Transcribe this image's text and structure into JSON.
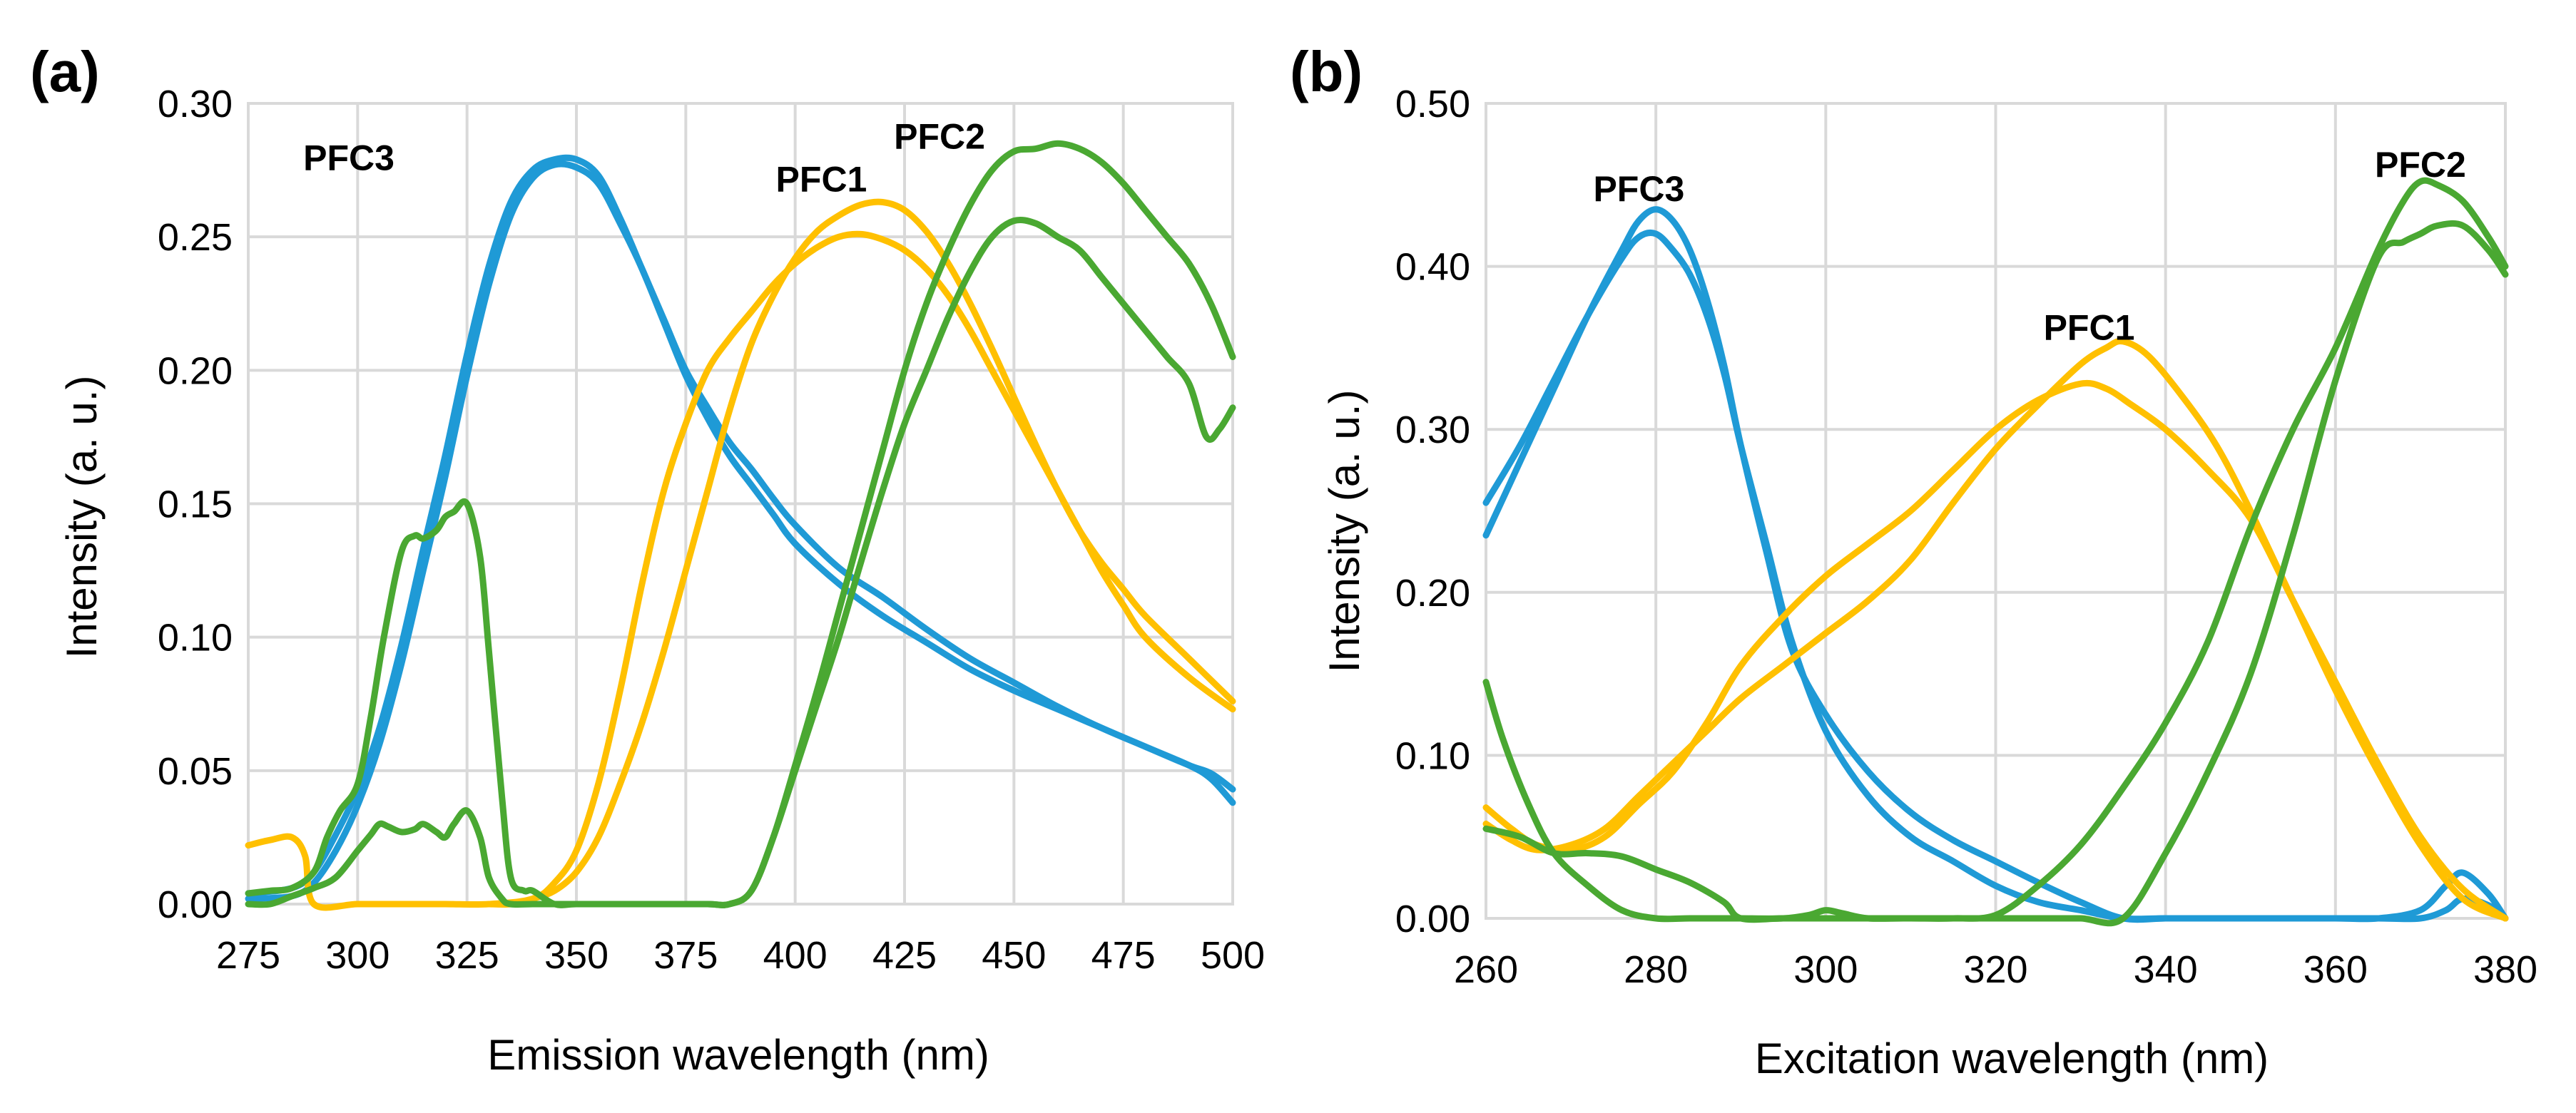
{
  "chart_data": [
    {
      "type": "line",
      "panel_label": "(a)",
      "xlabel": "Emission wavelength (nm)",
      "ylabel": "Intensity (a. u.)",
      "xlim": [
        275,
        500
      ],
      "ylim": [
        0,
        0.3
      ],
      "xticks": [
        "275",
        "300",
        "325",
        "350",
        "375",
        "400",
        "425",
        "450",
        "475",
        "500"
      ],
      "yticks": [
        "0.00",
        "0.05",
        "0.10",
        "0.15",
        "0.20",
        "0.25",
        "0.30"
      ],
      "grid": true,
      "labels": [
        {
          "text": "PFC3",
          "x": 298,
          "y": 0.275
        },
        {
          "text": "PFC1",
          "x": 406,
          "y": 0.267
        },
        {
          "text": "PFC2",
          "x": 433,
          "y": 0.283
        }
      ],
      "series": [
        {
          "name": "PFC3",
          "color": "#1f9ad6",
          "x": [
            275,
            285,
            290,
            295,
            300,
            305,
            310,
            315,
            320,
            325,
            330,
            335,
            340,
            345,
            350,
            355,
            360,
            365,
            370,
            375,
            380,
            385,
            390,
            395,
            400,
            410,
            420,
            430,
            440,
            450,
            460,
            470,
            480,
            490,
            495,
            500
          ],
          "values": [
            0.002,
            0.003,
            0.008,
            0.02,
            0.037,
            0.06,
            0.09,
            0.125,
            0.16,
            0.198,
            0.232,
            0.258,
            0.272,
            0.277,
            0.276,
            0.27,
            0.255,
            0.238,
            0.218,
            0.198,
            0.182,
            0.168,
            0.157,
            0.146,
            0.135,
            0.12,
            0.108,
            0.098,
            0.088,
            0.08,
            0.073,
            0.066,
            0.059,
            0.052,
            0.049,
            0.043
          ]
        },
        {
          "name": "PFC3",
          "color": "#1f9ad6",
          "x": [
            275,
            285,
            290,
            295,
            300,
            305,
            310,
            315,
            320,
            325,
            330,
            335,
            340,
            345,
            350,
            355,
            360,
            365,
            370,
            375,
            380,
            385,
            390,
            395,
            400,
            410,
            420,
            430,
            440,
            450,
            460,
            470,
            480,
            490,
            495,
            500
          ],
          "values": [
            0.004,
            0.006,
            0.012,
            0.026,
            0.043,
            0.066,
            0.097,
            0.133,
            0.168,
            0.206,
            0.239,
            0.263,
            0.275,
            0.279,
            0.279,
            0.273,
            0.257,
            0.238,
            0.219,
            0.2,
            0.186,
            0.173,
            0.163,
            0.152,
            0.142,
            0.126,
            0.115,
            0.103,
            0.092,
            0.083,
            0.074,
            0.066,
            0.059,
            0.052,
            0.047,
            0.038
          ]
        },
        {
          "name": "PFC1",
          "color": "#ffc000",
          "x": [
            275,
            280,
            285,
            288,
            290,
            300,
            310,
            320,
            330,
            340,
            345,
            350,
            355,
            360,
            365,
            370,
            375,
            380,
            385,
            390,
            395,
            400,
            405,
            410,
            415,
            420,
            425,
            430,
            435,
            440,
            445,
            450,
            455,
            460,
            465,
            470,
            475,
            480,
            490,
            500
          ],
          "values": [
            0.022,
            0.024,
            0.025,
            0.018,
            0.0,
            0.0,
            0.0,
            0.0,
            0.0,
            0.002,
            0.008,
            0.02,
            0.045,
            0.08,
            0.12,
            0.155,
            0.18,
            0.2,
            0.212,
            0.222,
            0.232,
            0.24,
            0.246,
            0.25,
            0.251,
            0.249,
            0.245,
            0.238,
            0.228,
            0.215,
            0.2,
            0.185,
            0.17,
            0.155,
            0.14,
            0.125,
            0.112,
            0.1,
            0.085,
            0.073
          ]
        },
        {
          "name": "PFC1",
          "color": "#ffc000",
          "x": [
            330,
            335,
            340,
            345,
            350,
            355,
            360,
            365,
            370,
            375,
            380,
            385,
            390,
            395,
            400,
            405,
            410,
            415,
            420,
            425,
            430,
            435,
            440,
            445,
            450,
            455,
            460,
            465,
            470,
            475,
            480,
            490,
            500
          ],
          "values": [
            0.0,
            0.0,
            0.002,
            0.005,
            0.012,
            0.025,
            0.045,
            0.068,
            0.095,
            0.125,
            0.155,
            0.185,
            0.21,
            0.228,
            0.242,
            0.252,
            0.258,
            0.262,
            0.263,
            0.26,
            0.252,
            0.24,
            0.225,
            0.208,
            0.19,
            0.172,
            0.155,
            0.14,
            0.128,
            0.118,
            0.108,
            0.092,
            0.076
          ]
        },
        {
          "name": "PFC2",
          "color": "#4aa832",
          "x": [
            275,
            280,
            285,
            290,
            293,
            296,
            300,
            303,
            306,
            310,
            313,
            315,
            318,
            320,
            322,
            325,
            328,
            330,
            333,
            335,
            338,
            340,
            345,
            350,
            360,
            370,
            380,
            385,
            390,
            395,
            400,
            405,
            410,
            415,
            420,
            425,
            430,
            435,
            440,
            445,
            450,
            455,
            460,
            465,
            470,
            475,
            480,
            485,
            490,
            494,
            497,
            500
          ],
          "values": [
            0.004,
            0.005,
            0.006,
            0.012,
            0.025,
            0.035,
            0.045,
            0.07,
            0.1,
            0.132,
            0.138,
            0.137,
            0.14,
            0.145,
            0.147,
            0.15,
            0.13,
            0.095,
            0.04,
            0.01,
            0.005,
            0.005,
            0.0,
            0.0,
            0.0,
            0.0,
            0.0,
            0.0,
            0.005,
            0.025,
            0.05,
            0.075,
            0.1,
            0.128,
            0.155,
            0.18,
            0.2,
            0.22,
            0.237,
            0.25,
            0.256,
            0.255,
            0.25,
            0.245,
            0.235,
            0.225,
            0.215,
            0.205,
            0.195,
            0.175,
            0.178,
            0.186
          ]
        },
        {
          "name": "PFC2",
          "color": "#4aa832",
          "x": [
            275,
            280,
            285,
            290,
            295,
            300,
            303,
            305,
            307,
            310,
            313,
            315,
            318,
            320,
            322,
            325,
            328,
            330,
            333,
            335,
            340,
            345,
            350,
            360,
            370,
            380,
            385,
            390,
            395,
            400,
            405,
            410,
            415,
            420,
            425,
            430,
            435,
            440,
            445,
            450,
            455,
            460,
            465,
            470,
            475,
            480,
            485,
            490,
            495,
            500
          ],
          "values": [
            0.0,
            0.0,
            0.003,
            0.006,
            0.01,
            0.02,
            0.026,
            0.03,
            0.029,
            0.027,
            0.028,
            0.03,
            0.027,
            0.025,
            0.03,
            0.035,
            0.025,
            0.01,
            0.002,
            0.0,
            0.0,
            0.0,
            0.0,
            0.0,
            0.0,
            0.0,
            0.0,
            0.005,
            0.025,
            0.052,
            0.08,
            0.11,
            0.14,
            0.17,
            0.2,
            0.225,
            0.245,
            0.262,
            0.275,
            0.282,
            0.283,
            0.285,
            0.283,
            0.278,
            0.27,
            0.26,
            0.25,
            0.24,
            0.225,
            0.205
          ]
        }
      ]
    },
    {
      "type": "line",
      "panel_label": "(b)",
      "xlabel": "Excitation wavelength (nm)",
      "ylabel": "Intensity (a. u.)",
      "xlim": [
        260,
        380
      ],
      "ylim": [
        0,
        0.5
      ],
      "xticks": [
        "260",
        "280",
        "300",
        "320",
        "340",
        "360",
        "380"
      ],
      "yticks": [
        "0.00",
        "0.10",
        "0.20",
        "0.30",
        "0.40",
        "0.50"
      ],
      "grid": true,
      "labels": [
        {
          "text": "PFC3",
          "x": 278,
          "y": 0.44
        },
        {
          "text": "PFC1",
          "x": 331,
          "y": 0.355
        },
        {
          "text": "PFC2",
          "x": 370,
          "y": 0.455
        }
      ],
      "series": [
        {
          "name": "PFC3",
          "color": "#1f9ad6",
          "x": [
            260,
            264,
            268,
            272,
            276,
            278,
            280,
            282,
            284,
            286,
            288,
            290,
            293,
            296,
            300,
            305,
            310,
            315,
            320,
            325,
            330,
            335,
            340,
            345,
            350,
            355,
            360,
            365,
            370,
            373,
            375,
            378,
            380
          ],
          "values": [
            0.255,
            0.29,
            0.33,
            0.37,
            0.405,
            0.418,
            0.42,
            0.41,
            0.395,
            0.37,
            0.335,
            0.29,
            0.23,
            0.17,
            0.115,
            0.075,
            0.05,
            0.035,
            0.02,
            0.01,
            0.005,
            0.0,
            0.0,
            0.0,
            0.0,
            0.0,
            0.0,
            0.0,
            0.005,
            0.02,
            0.028,
            0.015,
            0.0
          ]
        },
        {
          "name": "PFC3",
          "color": "#1f9ad6",
          "x": [
            260,
            264,
            268,
            272,
            276,
            278,
            280,
            282,
            284,
            286,
            288,
            290,
            293,
            296,
            300,
            305,
            310,
            315,
            320,
            325,
            330,
            335,
            340,
            345,
            350,
            355,
            360,
            365,
            370,
            373,
            375,
            378,
            380
          ],
          "values": [
            0.235,
            0.28,
            0.325,
            0.37,
            0.41,
            0.428,
            0.435,
            0.428,
            0.41,
            0.38,
            0.34,
            0.29,
            0.225,
            0.165,
            0.125,
            0.09,
            0.065,
            0.048,
            0.035,
            0.022,
            0.01,
            0.0,
            0.0,
            0.0,
            0.0,
            0.0,
            0.0,
            0.0,
            0.0,
            0.005,
            0.012,
            0.008,
            0.0
          ]
        },
        {
          "name": "PFC1",
          "color": "#ffc000",
          "x": [
            260,
            263,
            266,
            270,
            274,
            278,
            282,
            286,
            290,
            295,
            300,
            305,
            310,
            315,
            320,
            325,
            330,
            333,
            336,
            340,
            345,
            350,
            355,
            360,
            365,
            370,
            375,
            380
          ],
          "values": [
            0.068,
            0.055,
            0.045,
            0.042,
            0.05,
            0.07,
            0.09,
            0.12,
            0.155,
            0.185,
            0.21,
            0.23,
            0.25,
            0.275,
            0.3,
            0.318,
            0.328,
            0.325,
            0.315,
            0.3,
            0.275,
            0.245,
            0.195,
            0.145,
            0.095,
            0.05,
            0.018,
            0.0
          ]
        },
        {
          "name": "PFC1",
          "color": "#ffc000",
          "x": [
            260,
            263,
            266,
            270,
            274,
            278,
            282,
            286,
            290,
            295,
            300,
            305,
            310,
            315,
            320,
            325,
            330,
            333,
            335,
            338,
            342,
            346,
            350,
            355,
            360,
            365,
            370,
            375,
            380
          ],
          "values": [
            0.058,
            0.048,
            0.042,
            0.045,
            0.055,
            0.075,
            0.095,
            0.115,
            0.135,
            0.155,
            0.175,
            0.195,
            0.22,
            0.255,
            0.288,
            0.315,
            0.34,
            0.35,
            0.354,
            0.345,
            0.32,
            0.29,
            0.25,
            0.195,
            0.14,
            0.09,
            0.045,
            0.012,
            0.0
          ]
        },
        {
          "name": "PFC2",
          "color": "#4aa832",
          "x": [
            260,
            262,
            265,
            268,
            272,
            276,
            280,
            284,
            288,
            290,
            295,
            298,
            300,
            302,
            305,
            310,
            320,
            325,
            330,
            335,
            340,
            345,
            350,
            355,
            360,
            365,
            368,
            370,
            372,
            375,
            378,
            380
          ],
          "values": [
            0.145,
            0.11,
            0.07,
            0.04,
            0.02,
            0.005,
            0.0,
            0.0,
            0.0,
            0.0,
            0.0,
            0.002,
            0.005,
            0.003,
            0.0,
            0.0,
            0.0,
            0.0,
            0.0,
            0.0,
            0.04,
            0.09,
            0.15,
            0.235,
            0.33,
            0.405,
            0.415,
            0.42,
            0.425,
            0.425,
            0.41,
            0.395
          ]
        },
        {
          "name": "PFC2",
          "color": "#4aa832",
          "x": [
            260,
            264,
            268,
            272,
            276,
            280,
            284,
            288,
            290,
            295,
            300,
            305,
            310,
            315,
            320,
            325,
            330,
            335,
            340,
            345,
            350,
            355,
            360,
            365,
            368,
            370,
            372,
            375,
            378,
            380
          ],
          "values": [
            0.055,
            0.05,
            0.04,
            0.04,
            0.038,
            0.03,
            0.022,
            0.01,
            0.0,
            0.0,
            0.0,
            0.0,
            0.0,
            0.0,
            0.002,
            0.02,
            0.045,
            0.08,
            0.12,
            0.17,
            0.24,
            0.3,
            0.35,
            0.41,
            0.44,
            0.452,
            0.45,
            0.44,
            0.418,
            0.4
          ]
        }
      ]
    }
  ]
}
